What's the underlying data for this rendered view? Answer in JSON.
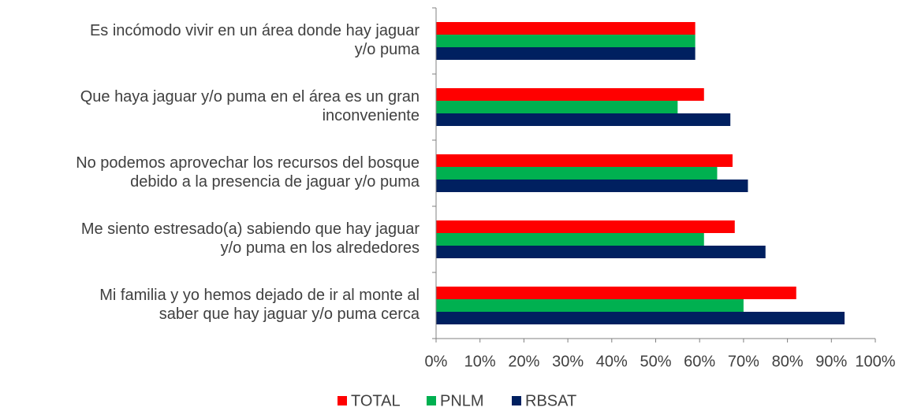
{
  "chart_data": {
    "type": "hbar",
    "categories": [
      "Es incómodo  vivir en un área donde hay jaguar\ny/o puma",
      "Que haya jaguar y/o puma en el área es un gran\ninconveniente",
      "No podemos aprovechar los recursos del bosque\ndebido a la presencia de jaguar y/o puma",
      "Me siento estresado(a) sabiendo que hay jaguar\ny/o puma en los alrededores",
      "Mi familia y yo hemos dejado de ir al monte al\nsaber que hay jaguar y/o puma cerca"
    ],
    "series": [
      {
        "name": "TOTAL",
        "color": "#ff0000",
        "values": [
          59,
          61,
          67.5,
          68,
          82
        ]
      },
      {
        "name": "PNLM",
        "color": "#00b050",
        "values": [
          59,
          55,
          64,
          61,
          70
        ]
      },
      {
        "name": "RBSAT",
        "color": "#002060",
        "values": [
          59,
          67,
          71,
          75,
          93
        ]
      }
    ],
    "xlim": [
      0,
      100
    ],
    "xticks": [
      {
        "value": 0,
        "label": "0%"
      },
      {
        "value": 10,
        "label": "10%"
      },
      {
        "value": 20,
        "label": "20%"
      },
      {
        "value": 30,
        "label": "30%"
      },
      {
        "value": 40,
        "label": "40%"
      },
      {
        "value": 50,
        "label": "50%"
      },
      {
        "value": 60,
        "label": "60%"
      },
      {
        "value": 70,
        "label": "70%"
      },
      {
        "value": 80,
        "label": "80%"
      },
      {
        "value": 90,
        "label": "90%"
      },
      {
        "value": 100,
        "label": "100%"
      }
    ],
    "legend": "bottom"
  }
}
